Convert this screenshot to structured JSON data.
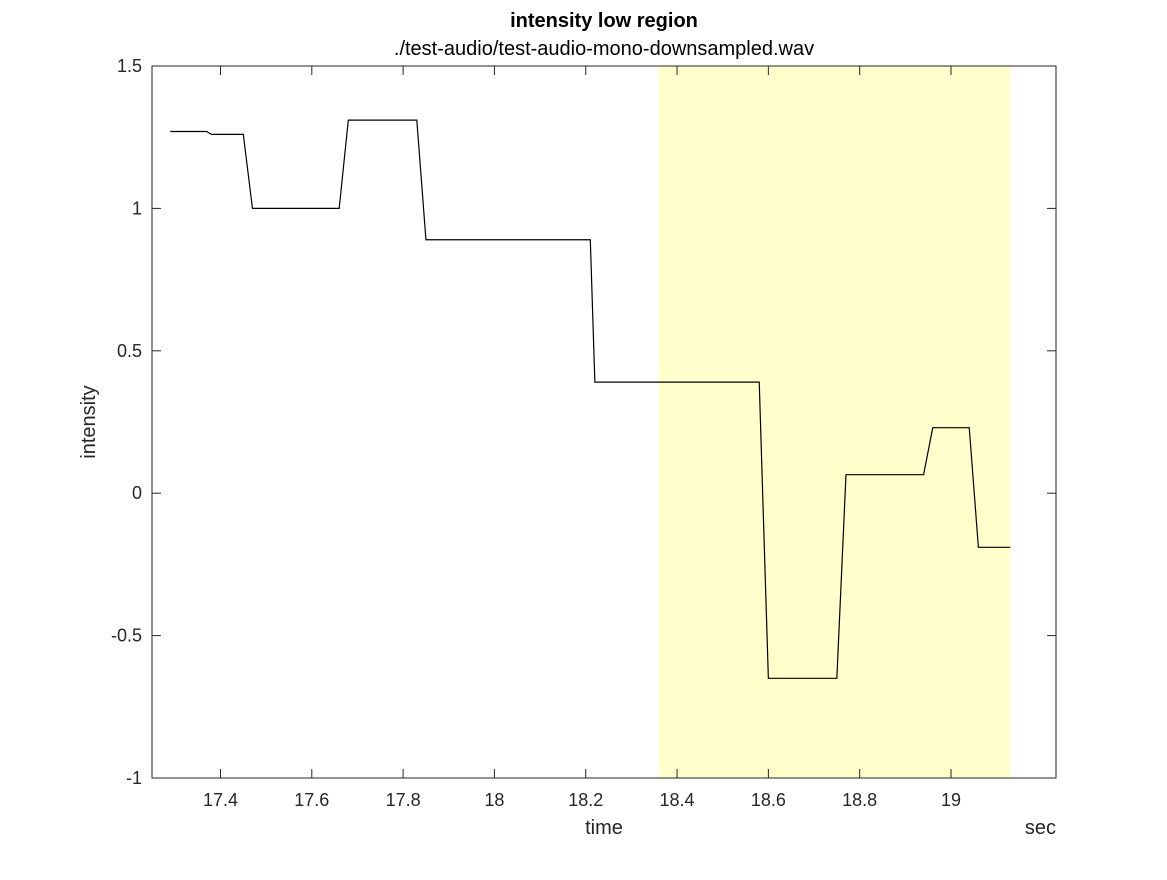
{
  "chart_data": {
    "type": "line",
    "title": "intensity low region",
    "subtitle": "./test-audio/test-audio-mono-downsampled.wav",
    "xlabel": "time",
    "xunit": "sec",
    "ylabel": "intensity",
    "xlim": [
      17.25,
      19.23
    ],
    "ylim": [
      -1,
      1.5
    ],
    "xticks": [
      17.4,
      17.6,
      17.8,
      18,
      18.2,
      18.4,
      18.6,
      18.8,
      19
    ],
    "xtick_labels": [
      "17.4",
      "17.6",
      "17.8",
      "18",
      "18.2",
      "18.4",
      "18.6",
      "18.8",
      "19"
    ],
    "yticks": [
      1.5,
      1,
      0.5,
      0,
      -0.5,
      -1
    ],
    "ytick_labels": [
      "1.5",
      "1",
      "0.5",
      "0",
      "-0.5",
      "-1"
    ],
    "grid": false,
    "highlight_region": {
      "x": [
        18.36,
        19.13
      ],
      "color": "#ffffcc"
    },
    "series": [
      {
        "color": "#000000",
        "x": [
          17.29,
          17.37,
          17.38,
          17.45,
          17.47,
          17.66,
          17.68,
          17.83,
          17.85,
          18.21,
          18.22,
          18.58,
          18.6,
          18.75,
          18.77,
          18.94,
          18.96,
          19.04,
          19.06,
          19.13
        ],
        "y": [
          1.27,
          1.27,
          1.26,
          1.26,
          1.0,
          1.0,
          1.31,
          1.31,
          0.89,
          0.89,
          0.39,
          0.39,
          -0.65,
          -0.65,
          0.065,
          0.065,
          0.23,
          0.23,
          -0.19,
          -0.19
        ]
      }
    ]
  }
}
